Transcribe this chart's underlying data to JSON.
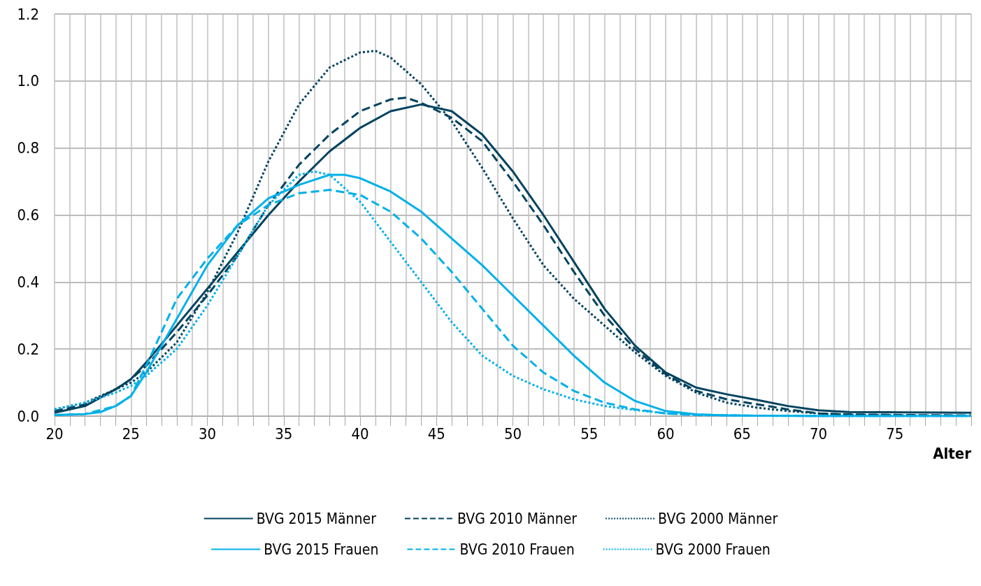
{
  "chart_data": {
    "type": "line",
    "xlabel": "Alter",
    "xlim": [
      20,
      80
    ],
    "xticks": [
      20,
      {
        "value": 21,
        "label": null
      },
      {
        "value": 22,
        "label": null
      },
      {
        "value": 23,
        "label": null
      },
      {
        "value": 24,
        "label": null
      },
      25,
      {
        "value": 26,
        "label": null
      },
      {
        "value": 27,
        "label": null
      },
      {
        "value": 28,
        "label": null
      },
      {
        "value": 29,
        "label": null
      },
      30,
      {
        "value": 31,
        "label": null
      },
      {
        "value": 32,
        "label": null
      },
      {
        "value": 33,
        "label": null
      },
      {
        "value": 34,
        "label": null
      },
      35,
      {
        "value": 36,
        "label": null
      },
      {
        "value": 37,
        "label": null
      },
      {
        "value": 38,
        "label": null
      },
      {
        "value": 39,
        "label": null
      },
      40,
      {
        "value": 41,
        "label": null
      },
      {
        "value": 42,
        "label": null
      },
      {
        "value": 43,
        "label": null
      },
      {
        "value": 44,
        "label": null
      },
      45,
      {
        "value": 46,
        "label": null
      },
      {
        "value": 47,
        "label": null
      },
      {
        "value": 48,
        "label": null
      },
      {
        "value": 49,
        "label": null
      },
      50,
      {
        "value": 51,
        "label": null
      },
      {
        "value": 52,
        "label": null
      },
      {
        "value": 53,
        "label": null
      },
      {
        "value": 54,
        "label": null
      },
      55,
      {
        "value": 56,
        "label": null
      },
      {
        "value": 57,
        "label": null
      },
      {
        "value": 58,
        "label": null
      },
      {
        "value": 59,
        "label": null
      },
      60,
      {
        "value": 61,
        "label": null
      },
      {
        "value": 62,
        "label": null
      },
      {
        "value": 63,
        "label": null
      },
      {
        "value": 64,
        "label": null
      },
      65,
      {
        "value": 66,
        "label": null
      },
      {
        "value": 67,
        "label": null
      },
      {
        "value": 68,
        "label": null
      },
      {
        "value": 69,
        "label": null
      },
      70,
      {
        "value": 71,
        "label": null
      },
      {
        "value": 72,
        "label": null
      },
      {
        "value": 73,
        "label": null
      },
      {
        "value": 74,
        "label": null
      },
      75,
      {
        "value": 76,
        "label": null
      },
      {
        "value": 77,
        "label": null
      },
      {
        "value": 78,
        "label": null
      },
      {
        "value": 79,
        "label": null
      },
      {
        "value": 80,
        "label": null
      }
    ],
    "ylim": [
      0,
      1.2
    ],
    "yticks": [
      {
        "value": 0,
        "label": "0.0"
      },
      {
        "value": 0.2,
        "label": "0.2"
      },
      {
        "value": 0.4,
        "label": "0.4"
      },
      {
        "value": 0.6,
        "label": "0.6"
      },
      {
        "value": 0.8,
        "label": "0.8"
      },
      {
        "value": 1,
        "label": "1.0"
      },
      {
        "value": 1.2,
        "label": "1.2"
      }
    ],
    "grid": true,
    "legend": "bottom",
    "marker": "none",
    "series": [
      {
        "name": "BVG 2015 Männer",
        "color": "#00435f",
        "line_style": "solid",
        "x": [
          20,
          22,
          24,
          25,
          26,
          28,
          30,
          32,
          34,
          36,
          38,
          40,
          42,
          44,
          46,
          48,
          50,
          52,
          54,
          56,
          58,
          60,
          62,
          64,
          66,
          68,
          70,
          72,
          76,
          80
        ],
        "values": [
          0.01,
          0.03,
          0.08,
          0.11,
          0.16,
          0.27,
          0.38,
          0.49,
          0.6,
          0.7,
          0.79,
          0.86,
          0.91,
          0.93,
          0.91,
          0.84,
          0.73,
          0.6,
          0.46,
          0.32,
          0.21,
          0.13,
          0.085,
          0.065,
          0.048,
          0.03,
          0.017,
          0.012,
          0.011,
          0.01
        ]
      },
      {
        "name": "BVG 2010 Männer",
        "color": "#00435f",
        "line_style": "dashed",
        "x": [
          20,
          22,
          24,
          25,
          26,
          28,
          30,
          32,
          34,
          36,
          38,
          40,
          42,
          43,
          44,
          46,
          48,
          50,
          52,
          54,
          56,
          58,
          60,
          62,
          64,
          66,
          68,
          70,
          72,
          76,
          80
        ],
        "values": [
          0.015,
          0.035,
          0.08,
          0.11,
          0.15,
          0.25,
          0.36,
          0.48,
          0.63,
          0.75,
          0.84,
          0.91,
          0.945,
          0.95,
          0.935,
          0.89,
          0.82,
          0.7,
          0.57,
          0.43,
          0.3,
          0.2,
          0.125,
          0.075,
          0.05,
          0.035,
          0.02,
          0.008,
          0.005,
          0.003,
          0.002
        ]
      },
      {
        "name": "BVG 2000 Männer",
        "color": "#00435f",
        "line_style": "dotted",
        "x": [
          20,
          22,
          24,
          25,
          26,
          28,
          30,
          32,
          34,
          36,
          38,
          40,
          41,
          42,
          44,
          46,
          48,
          50,
          52,
          54,
          56,
          58,
          60,
          62,
          64,
          66,
          68,
          70,
          72,
          76,
          80
        ],
        "values": [
          0.02,
          0.04,
          0.08,
          0.1,
          0.13,
          0.22,
          0.37,
          0.55,
          0.76,
          0.93,
          1.04,
          1.085,
          1.09,
          1.07,
          0.99,
          0.88,
          0.74,
          0.59,
          0.45,
          0.35,
          0.27,
          0.19,
          0.12,
          0.07,
          0.04,
          0.025,
          0.015,
          0.008,
          0.004,
          0.002,
          0.001
        ]
      },
      {
        "name": "BVG 2015 Frauen",
        "color": "#00b0e8",
        "line_style": "solid",
        "x": [
          20,
          22,
          23,
          24,
          25,
          26,
          28,
          30,
          32,
          34,
          36,
          38,
          39,
          40,
          42,
          44,
          46,
          48,
          50,
          52,
          54,
          56,
          58,
          60,
          62,
          64,
          66,
          70,
          80
        ],
        "values": [
          0.003,
          0.006,
          0.012,
          0.03,
          0.06,
          0.13,
          0.29,
          0.45,
          0.57,
          0.65,
          0.69,
          0.72,
          0.72,
          0.71,
          0.67,
          0.61,
          0.53,
          0.45,
          0.36,
          0.27,
          0.18,
          0.1,
          0.045,
          0.015,
          0.005,
          0.002,
          0.001,
          0,
          0
        ]
      },
      {
        "name": "BVG 2010 Frauen",
        "color": "#00b0e8",
        "line_style": "dashed",
        "x": [
          20,
          22,
          24,
          25,
          26,
          28,
          30,
          32,
          34,
          36,
          38,
          40,
          42,
          44,
          46,
          48,
          50,
          52,
          54,
          56,
          58,
          60,
          62,
          66,
          70,
          80
        ],
        "values": [
          0.003,
          0.006,
          0.03,
          0.06,
          0.15,
          0.35,
          0.47,
          0.57,
          0.63,
          0.665,
          0.675,
          0.66,
          0.61,
          0.53,
          0.43,
          0.32,
          0.21,
          0.13,
          0.075,
          0.04,
          0.02,
          0.008,
          0.003,
          0.001,
          0,
          0
        ]
      },
      {
        "name": "BVG 2000 Frauen",
        "color": "#00b0e8",
        "line_style": "dotted",
        "x": [
          20,
          22,
          24,
          25,
          26,
          28,
          30,
          32,
          34,
          36,
          37,
          38,
          40,
          42,
          44,
          46,
          48,
          50,
          52,
          54,
          56,
          58,
          60,
          62,
          66,
          70,
          80
        ],
        "values": [
          0.02,
          0.04,
          0.07,
          0.09,
          0.12,
          0.2,
          0.33,
          0.48,
          0.63,
          0.72,
          0.73,
          0.72,
          0.64,
          0.52,
          0.4,
          0.28,
          0.18,
          0.12,
          0.08,
          0.05,
          0.03,
          0.018,
          0.008,
          0.004,
          0.001,
          0,
          0
        ]
      }
    ]
  }
}
